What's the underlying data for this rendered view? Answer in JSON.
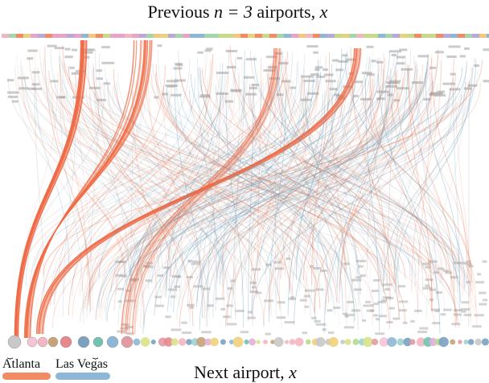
{
  "title_prefix": "Previous ",
  "title_math": "n = 3",
  "title_middle": " airports, ",
  "title_vec": "x⃗",
  "bottom_label_text": "Next airport, ",
  "bottom_label_var": "x",
  "legend": [
    {
      "label": "Atlanta",
      "color": "#f28a63"
    },
    {
      "label": "Las Vegas",
      "color": "#8db7d6"
    }
  ],
  "colors": {
    "atlanta_flow": "#ef6a45",
    "lasvegas_flow": "#5d97b8",
    "gray_flow": "#9c9c9c",
    "gray_node": "#b5b5b5"
  }
}
